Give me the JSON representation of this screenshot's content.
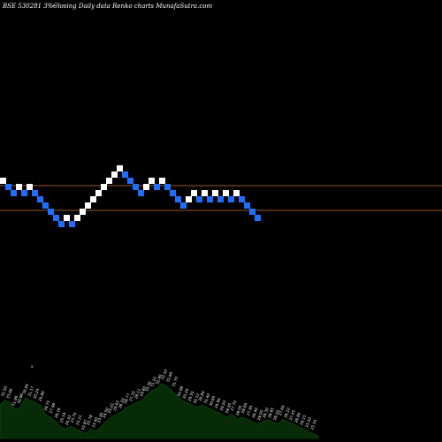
{
  "header": {
    "symbol": "BSE 530281 3%~",
    "description": "Closing Daily data  Renko  charts MunafaSutra.com"
  },
  "colors": {
    "background": "#000000",
    "up_brick": "#ffffff",
    "down_brick": "#1f6fff",
    "level_line": "#c87533",
    "volume_fill": "#062b06",
    "volume_edge": "#0a5a0a",
    "label_text": "#ffffff"
  },
  "chart_data": {
    "type": "renko",
    "title": "",
    "xlabel": "",
    "ylabel": "",
    "ylim": [
      21,
      39
    ],
    "grid": false,
    "legend": "none",
    "reference_levels": [
      30,
      26
    ],
    "bricks": [
      {
        "level": 31,
        "dir": "up"
      },
      {
        "level": 30,
        "dir": "down"
      },
      {
        "level": 29,
        "dir": "down"
      },
      {
        "level": 30,
        "dir": "up"
      },
      {
        "level": 29,
        "dir": "down"
      },
      {
        "level": 30,
        "dir": "up"
      },
      {
        "level": 29,
        "dir": "down"
      },
      {
        "level": 28,
        "dir": "down"
      },
      {
        "level": 27,
        "dir": "down"
      },
      {
        "level": 26,
        "dir": "down"
      },
      {
        "level": 25,
        "dir": "down"
      },
      {
        "level": 24,
        "dir": "down"
      },
      {
        "level": 25,
        "dir": "up"
      },
      {
        "level": 24,
        "dir": "down"
      },
      {
        "level": 25,
        "dir": "up"
      },
      {
        "level": 26,
        "dir": "up"
      },
      {
        "level": 27,
        "dir": "up"
      },
      {
        "level": 28,
        "dir": "up"
      },
      {
        "level": 29,
        "dir": "up"
      },
      {
        "level": 30,
        "dir": "up"
      },
      {
        "level": 31,
        "dir": "up"
      },
      {
        "level": 32,
        "dir": "up"
      },
      {
        "level": 33,
        "dir": "up"
      },
      {
        "level": 32,
        "dir": "down"
      },
      {
        "level": 31,
        "dir": "down"
      },
      {
        "level": 30,
        "dir": "down"
      },
      {
        "level": 29,
        "dir": "down"
      },
      {
        "level": 30,
        "dir": "up"
      },
      {
        "level": 31,
        "dir": "up"
      },
      {
        "level": 30,
        "dir": "down"
      },
      {
        "level": 31,
        "dir": "up"
      },
      {
        "level": 30,
        "dir": "down"
      },
      {
        "level": 29,
        "dir": "down"
      },
      {
        "level": 28,
        "dir": "down"
      },
      {
        "level": 27,
        "dir": "down"
      },
      {
        "level": 28,
        "dir": "up"
      },
      {
        "level": 29,
        "dir": "up"
      },
      {
        "level": 28,
        "dir": "down"
      },
      {
        "level": 29,
        "dir": "up"
      },
      {
        "level": 28,
        "dir": "down"
      },
      {
        "level": 29,
        "dir": "up"
      },
      {
        "level": 28,
        "dir": "down"
      },
      {
        "level": 29,
        "dir": "up"
      },
      {
        "level": 28,
        "dir": "down"
      },
      {
        "level": 29,
        "dir": "up"
      },
      {
        "level": 28,
        "dir": "down"
      },
      {
        "level": 27,
        "dir": "down"
      },
      {
        "level": 26,
        "dir": "down"
      },
      {
        "level": 25,
        "dir": "down"
      }
    ],
    "volume": [
      14,
      16,
      15,
      12,
      13,
      17,
      16,
      15,
      14,
      10,
      9,
      7,
      5,
      4,
      5,
      4,
      3,
      2,
      4,
      3,
      5,
      7,
      9,
      10,
      11,
      13,
      14,
      15,
      16,
      18,
      20,
      21,
      23,
      22,
      20,
      18,
      16,
      15,
      14,
      13,
      14,
      13,
      12,
      11,
      10,
      9,
      10,
      8,
      9,
      8,
      7,
      6,
      7,
      8,
      7,
      6,
      8,
      7,
      6,
      5,
      4,
      3,
      2,
      1
    ],
    "label_values": [
      "32.50",
      "33.00",
      "31.90",
      "30.86",
      "30.04",
      "31.17",
      "30.24",
      "29.80",
      "28.75",
      "27.48",
      "26.16",
      "25.19",
      "24.42",
      "23.70",
      "23.21",
      "22.87",
      "22.78",
      "23.40",
      "23.95",
      "24.50",
      "25.01",
      "25.63",
      "26.20",
      "26.77",
      "27.35",
      "28.11",
      "29.80",
      "30.30",
      "31.25",
      "32.40",
      "33.10",
      "32.60",
      "31.70",
      "30.98",
      "30.20",
      "29.55",
      "30.12",
      "30.80",
      "31.40",
      "30.65",
      "29.90",
      "29.20",
      "28.45",
      "27.70",
      "28.05",
      "28.60",
      "27.95",
      "28.40",
      "28.95",
      "28.30",
      "28.85",
      "28.20",
      "27.60",
      "28.10",
      "27.45",
      "26.80",
      "26.15",
      "25.50",
      "25.10"
    ],
    "volume_marker": "x"
  }
}
